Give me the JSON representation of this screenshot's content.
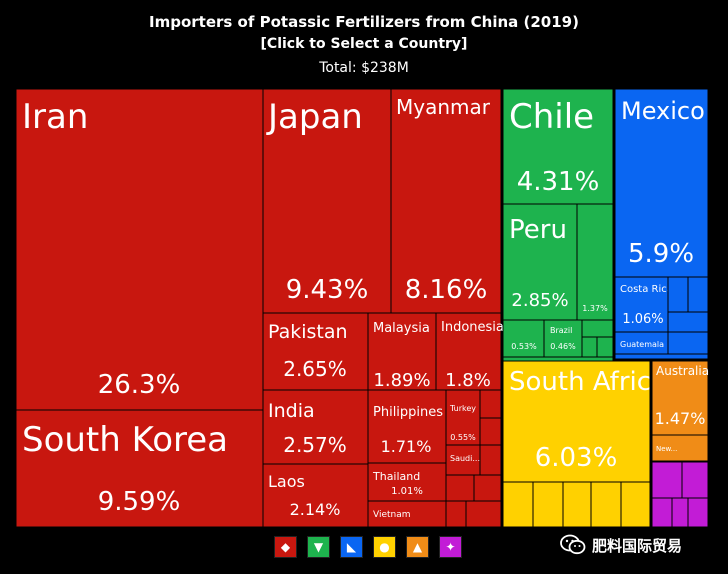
{
  "header": {
    "title": "Importers of Potassic Fertilizers from China (2019)",
    "subtitle": "[Click to Select a Country]",
    "total": "Total: $238M"
  },
  "colors": {
    "asia": "#c8170f",
    "americas_south": "#1eb34e",
    "americas_north": "#0a66f2",
    "africa": "#ffd100",
    "oceania": "#f08c17",
    "europe": "#c21cd6"
  },
  "chart_data": {
    "type": "treemap",
    "unit": "%",
    "tiles": [
      {
        "name": "Iran",
        "value": "26.3%",
        "region": "asia"
      },
      {
        "name": "South Korea",
        "value": "9.59%",
        "region": "asia"
      },
      {
        "name": "Japan",
        "value": "9.43%",
        "region": "asia"
      },
      {
        "name": "Myanmar",
        "value": "8.16%",
        "region": "asia"
      },
      {
        "name": "Pakistan",
        "value": "2.65%",
        "region": "asia"
      },
      {
        "name": "Malaysia",
        "value": "1.89%",
        "region": "asia"
      },
      {
        "name": "Indonesia",
        "value": "1.8%",
        "region": "asia"
      },
      {
        "name": "India",
        "value": "2.57%",
        "region": "asia"
      },
      {
        "name": "Philippines",
        "value": "1.71%",
        "region": "asia"
      },
      {
        "name": "Turkey",
        "value": "0.55%",
        "region": "asia"
      },
      {
        "name": "Saudi...",
        "value": "",
        "region": "asia"
      },
      {
        "name": "Laos",
        "value": "2.14%",
        "region": "asia"
      },
      {
        "name": "Thailand",
        "value": "1.01%",
        "region": "asia"
      },
      {
        "name": "Vietnam",
        "value": "",
        "region": "asia"
      },
      {
        "name": "Chile",
        "value": "4.31%",
        "region": "americas_south"
      },
      {
        "name": "Peru",
        "value": "2.85%",
        "region": "americas_south"
      },
      {
        "name": "",
        "value": "1.37%",
        "region": "americas_south"
      },
      {
        "name": "",
        "value": "0.53%",
        "region": "americas_south"
      },
      {
        "name": "Brazil",
        "value": "0.46%",
        "region": "americas_south"
      },
      {
        "name": "Mexico",
        "value": "5.9%",
        "region": "americas_north"
      },
      {
        "name": "Costa Rica",
        "value": "1.06%",
        "region": "americas_north"
      },
      {
        "name": "Guatemala",
        "value": "",
        "region": "americas_north"
      },
      {
        "name": "South Africa",
        "value": "6.03%",
        "region": "africa"
      },
      {
        "name": "Australia",
        "value": "1.47%",
        "region": "oceania"
      },
      {
        "name": "New...",
        "value": "",
        "region": "oceania"
      }
    ]
  },
  "legend": [
    {
      "icon": "asia-map-icon",
      "region": "asia"
    },
    {
      "icon": "south-america-map-icon",
      "region": "americas_south"
    },
    {
      "icon": "north-america-map-icon",
      "region": "americas_north"
    },
    {
      "icon": "africa-map-icon",
      "region": "africa"
    },
    {
      "icon": "oceania-map-icon",
      "region": "oceania"
    },
    {
      "icon": "europe-map-icon",
      "region": "europe"
    }
  ],
  "watermark": {
    "text": "肥料国际贸易",
    "icon": "wechat-icon"
  }
}
